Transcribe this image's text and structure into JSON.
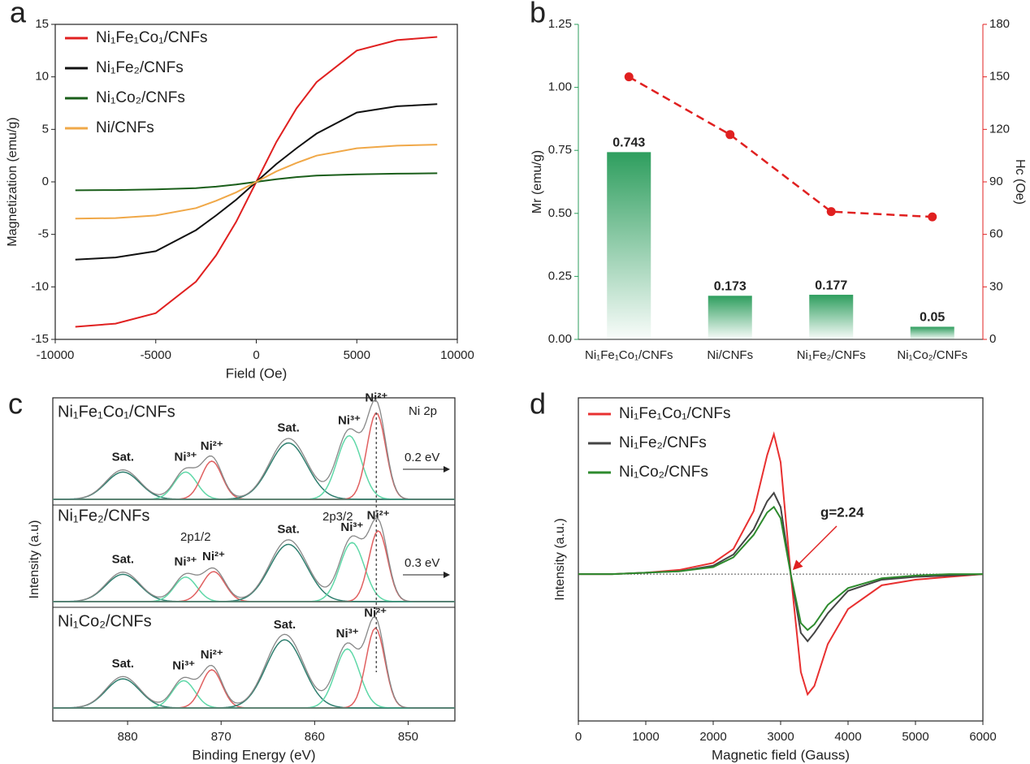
{
  "chart_data": [
    {
      "label": "a",
      "type": "line",
      "xlabel": "Field (Oe)",
      "ylabel": "Magnetization (emu/g)",
      "legend": "upper left",
      "x": [
        -9000,
        -7000,
        -5000,
        -3000,
        -2000,
        -1000,
        0,
        1000,
        2000,
        3000,
        5000,
        7000,
        9000
      ],
      "series": [
        {
          "name": "Ni₁Fe₁Co₁/CNFs",
          "color": "#e02020",
          "values": [
            -13.8,
            -13.5,
            -12.5,
            -9.5,
            -7,
            -3.8,
            0,
            3.8,
            7,
            9.5,
            12.5,
            13.5,
            13.8
          ]
        },
        {
          "name": "Ni₁Fe₂/CNFs",
          "color": "#111111",
          "values": [
            -7.4,
            -7.2,
            -6.6,
            -4.6,
            -3.2,
            -1.7,
            0,
            1.7,
            3.2,
            4.6,
            6.6,
            7.2,
            7.4
          ]
        },
        {
          "name": "Ni₁Co₂/CNFs",
          "color": "#1a5e1a",
          "values": [
            -0.8,
            -0.78,
            -0.72,
            -0.6,
            -0.45,
            -0.25,
            0,
            0.25,
            0.45,
            0.6,
            0.72,
            0.78,
            0.82
          ]
        },
        {
          "name": "Ni/CNFs",
          "color": "#f0a848",
          "values": [
            -3.5,
            -3.45,
            -3.2,
            -2.5,
            -1.8,
            -1,
            0,
            1,
            1.8,
            2.5,
            3.2,
            3.45,
            3.55
          ]
        }
      ],
      "xlim": [
        -10000,
        10000
      ],
      "xticks": [
        -10000,
        -5000,
        0,
        5000,
        10000
      ],
      "ylim": [
        -15,
        15
      ],
      "yticks": [
        -15,
        -10,
        -5,
        0,
        5,
        10,
        15
      ]
    },
    {
      "label": "b",
      "type": "bar-line",
      "ylabel": "Mr (emu/g)",
      "y2label": "Hc (Oe)",
      "categories": [
        "Ni₁Fe₁Co₁/CNFs",
        "Ni/CNFs",
        "Ni₁Fe₂/CNFs",
        "Ni₁Co₂/CNFs"
      ],
      "series": [
        {
          "color": "#2e9e5e",
          "values": [
            0.743,
            0.173,
            0.177,
            0.05
          ]
        },
        {
          "color": "#e02020",
          "values": [
            150,
            117,
            73,
            70
          ],
          "axis": "y2"
        }
      ],
      "ylim": [
        0,
        1.25
      ],
      "yticks": [
        {
          "value": 0,
          "label": "0.00"
        },
        0.25,
        {
          "value": 0.5,
          "label": "0.50"
        },
        0.75,
        {
          "value": 1,
          "label": "1.00"
        },
        1.25
      ],
      "y2lim": [
        0,
        180
      ],
      "y2ticks": [
        0,
        30,
        60,
        90,
        120,
        150,
        180
      ]
    },
    {
      "label": "c",
      "type": "xps",
      "xlabel": "Binding Energy (eV)",
      "ylabel": "Intensity (a.u)",
      "annotation": "Ni 2p",
      "orbitals": [
        "2p1/2",
        "2p3/2"
      ],
      "xlim": [
        888,
        845
      ],
      "xticks": [
        880,
        870,
        860,
        850
      ],
      "spectra": [
        {
          "name": "Ni₁Fe₁Co₁/CNFs",
          "shift": "0.2 eV",
          "components": [
            {
              "name": "Sat.",
              "center": 880.5,
              "height": 0.3,
              "width": 1.8,
              "color": "#2f7f6f",
              "label_color": "#4cc0cc"
            },
            {
              "name": "Ni³⁺",
              "center": 873.8,
              "height": 0.3,
              "width": 1.2,
              "color": "#5fd8a8",
              "label_color": "#22b04a"
            },
            {
              "name": "Ni²⁺",
              "center": 871,
              "height": 0.42,
              "width": 1.1,
              "color": "#e06060",
              "label_color": "#e02020"
            },
            {
              "name": "Sat.",
              "center": 862.8,
              "height": 0.62,
              "width": 2,
              "color": "#2f7f6f",
              "label_color": "#4cc0cc"
            },
            {
              "name": "Ni³⁺",
              "center": 856.3,
              "height": 0.7,
              "width": 1.3,
              "color": "#5fd8a8",
              "label_color": "#22b04a"
            },
            {
              "name": "Ni²⁺",
              "center": 853.4,
              "height": 0.95,
              "width": 1,
              "color": "#e06060",
              "label_color": "#e02020"
            }
          ]
        },
        {
          "name": "Ni₁Fe₂/CNFs",
          "shift": "0.3 eV",
          "components": [
            {
              "name": "Sat.",
              "center": 880.5,
              "height": 0.3,
              "width": 1.8,
              "color": "#2f7f6f",
              "label_color": "#4cc0cc"
            },
            {
              "name": "Ni³⁺",
              "center": 873.8,
              "height": 0.27,
              "width": 1.2,
              "color": "#5fd8a8",
              "label_color": "#22b04a"
            },
            {
              "name": "Ni²⁺",
              "center": 870.8,
              "height": 0.33,
              "width": 1.2,
              "color": "#e06060",
              "label_color": "#e02020"
            },
            {
              "name": "Sat.",
              "center": 862.8,
              "height": 0.63,
              "width": 2,
              "color": "#2f7f6f",
              "label_color": "#4cc0cc"
            },
            {
              "name": "Ni³⁺",
              "center": 856,
              "height": 0.65,
              "width": 1.3,
              "color": "#5fd8a8",
              "label_color": "#22b04a"
            },
            {
              "name": "Ni²⁺",
              "center": 853.2,
              "height": 0.78,
              "width": 1,
              "color": "#e06060",
              "label_color": "#e02020"
            }
          ]
        },
        {
          "name": "Ni₁Co₂/CNFs",
          "components": [
            {
              "name": "Sat.",
              "center": 880.5,
              "height": 0.32,
              "width": 1.8,
              "color": "#2f7f6f",
              "label_color": "#4cc0cc"
            },
            {
              "name": "Ni³⁺",
              "center": 874,
              "height": 0.3,
              "width": 1.2,
              "color": "#5fd8a8",
              "label_color": "#22b04a"
            },
            {
              "name": "Ni²⁺",
              "center": 871,
              "height": 0.42,
              "width": 1.1,
              "color": "#e06060",
              "label_color": "#e02020"
            },
            {
              "name": "Sat.",
              "center": 863.2,
              "height": 0.75,
              "width": 2,
              "color": "#2f7f6f",
              "label_color": "#4cc0cc"
            },
            {
              "name": "Ni³⁺",
              "center": 856.5,
              "height": 0.65,
              "width": 1.3,
              "color": "#5fd8a8",
              "label_color": "#22b04a"
            },
            {
              "name": "Ni²⁺",
              "center": 853.5,
              "height": 0.88,
              "width": 1,
              "color": "#e06060",
              "label_color": "#e02020"
            }
          ]
        }
      ]
    },
    {
      "label": "d",
      "type": "line",
      "xlabel": "Magnetic field (Gauss)",
      "ylabel": "Intensity (a.u.)",
      "legend": "upper left",
      "annotation": "g=2.24",
      "x": [
        0,
        500,
        1000,
        1500,
        2000,
        2300,
        2600,
        2800,
        2900,
        3000,
        3150,
        3300,
        3400,
        3500,
        3700,
        4000,
        4500,
        5000,
        5500,
        6000
      ],
      "series": [
        {
          "name": "Ni₁Fe₁Co₁/CNFs",
          "color": "#e83030",
          "values": [
            0,
            0,
            0.01,
            0.03,
            0.08,
            0.18,
            0.45,
            0.85,
            1,
            0.8,
            0,
            -0.7,
            -0.86,
            -0.8,
            -0.5,
            -0.25,
            -0.08,
            -0.04,
            -0.02,
            0
          ]
        },
        {
          "name": "Ni₁Fe₂/CNFs",
          "color": "#444444",
          "values": [
            0,
            0,
            0.01,
            0.02,
            0.06,
            0.14,
            0.32,
            0.52,
            0.58,
            0.48,
            0,
            -0.42,
            -0.48,
            -0.42,
            -0.28,
            -0.12,
            -0.04,
            -0.02,
            -0.01,
            0
          ]
        },
        {
          "name": "Ni₁Co₂/CNFs",
          "color": "#2e8b2e",
          "values": [
            0,
            0,
            0.01,
            0.02,
            0.05,
            0.12,
            0.28,
            0.44,
            0.48,
            0.4,
            0,
            -0.35,
            -0.4,
            -0.36,
            -0.22,
            -0.1,
            -0.03,
            -0.01,
            0,
            0
          ]
        }
      ],
      "xlim": [
        0,
        6000
      ],
      "xticks": [
        0,
        1000,
        2000,
        3000,
        4000,
        5000,
        6000
      ],
      "ylim": [
        -1.05,
        1.26
      ]
    }
  ]
}
